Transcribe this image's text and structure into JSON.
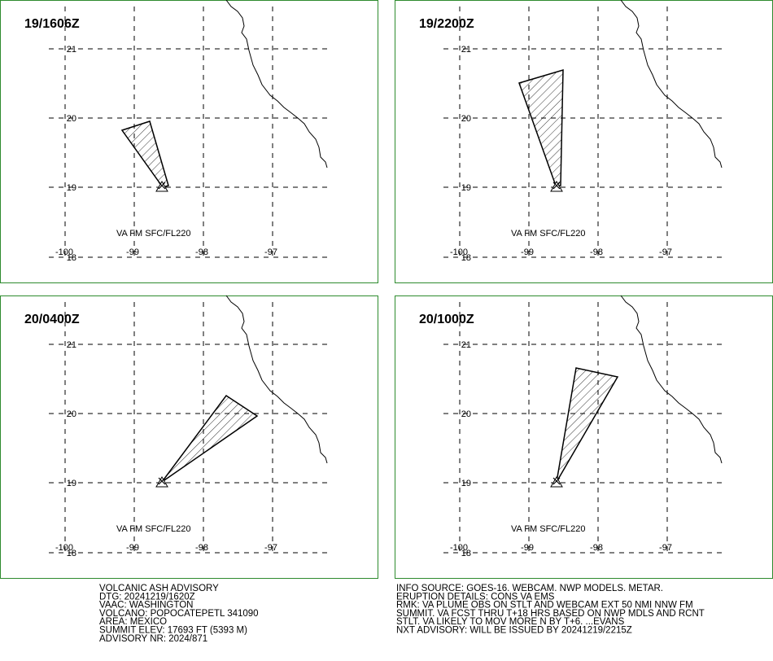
{
  "panels": [
    {
      "time": "19/1606Z",
      "lat_labels": [
        "21",
        "20",
        "19",
        "18"
      ],
      "lon_labels": [
        "-100",
        "-99",
        "-98",
        "-97"
      ],
      "layer": "VA FM SFC/FL220"
    },
    {
      "time": "19/2200Z",
      "lat_labels": [
        "21",
        "20",
        "19",
        "18"
      ],
      "lon_labels": [
        "-100",
        "-99",
        "-98",
        "-97"
      ],
      "layer": "VA FM SFC/FL220"
    },
    {
      "time": "20/0400Z",
      "lat_labels": [
        "21",
        "20",
        "19",
        "18"
      ],
      "lon_labels": [
        "-100",
        "-99",
        "-98",
        "-97"
      ],
      "layer": "VA FM SFC/FL220"
    },
    {
      "time": "20/1000Z",
      "lat_labels": [
        "21",
        "20",
        "19",
        "18"
      ],
      "lon_labels": [
        "-100",
        "-99",
        "-98",
        "-97"
      ],
      "layer": "VA FM SFC/FL220"
    }
  ],
  "advisory": {
    "left": [
      "VOLCANIC ASH ADVISORY",
      "DTG: 20241219/1620Z",
      "VAAC: WASHINGTON",
      "VOLCANO: POPOCATEPETL 341090",
      "AREA: MEXICO",
      "SUMMIT ELEV: 17693 FT (5393 M)",
      "ADVISORY NR: 2024/871"
    ],
    "right": [
      "INFO SOURCE: GOES-16. WEBCAM. NWP MODELS. METAR.",
      "ERUPTION DETAILS: CONS VA EMS",
      "RMK: VA PLUME OBS ON STLT AND WEBCAM EXT 50 NMI NNW FM",
      "SUMMIT. VA FCST THRU T+18 HRS BASED ON NWP MDLS AND RCNT",
      "STLT. VA LIKELY TO MOV MORE N BY T+6. ...EVANS",
      "NXT ADVISORY: WILL BE ISSUED BY 20241219/2215Z"
    ]
  }
}
